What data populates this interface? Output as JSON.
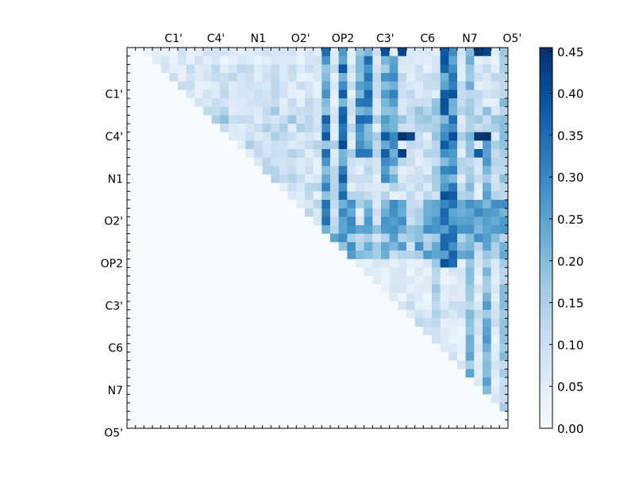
{
  "chart_data": {
    "type": "heatmap",
    "x_ticks": [
      "C1'",
      "C4'",
      "N1",
      "O2'",
      "OP2",
      "C3'",
      "C6",
      "N7",
      "O5'"
    ],
    "y_ticks": [
      "C1'",
      "C4'",
      "N1",
      "O2'",
      "OP2",
      "C3'",
      "C6",
      "N7",
      "O5'"
    ],
    "colorbar": {
      "colormap": "Blues",
      "min": 0.0,
      "max": 0.4545,
      "ticks": [
        0.0,
        0.05,
        0.1,
        0.15,
        0.2,
        0.25,
        0.3,
        0.35,
        0.4,
        0.45
      ],
      "tick_labels": [
        "0.00",
        "0.05",
        "0.10",
        "0.15",
        "0.20",
        "0.25",
        "0.30",
        "0.35",
        "0.40",
        "0.45"
      ]
    },
    "grid": false,
    "triangle": "upper",
    "matrix": {
      "size": 45,
      "background": 0.0,
      "default_upper_value": 0.03,
      "upper_bands": [
        {
          "rows": [
            0,
            1
          ],
          "value": 0.06
        },
        {
          "rows": [
            2,
            6
          ],
          "value": 0.08
        },
        {
          "rows": [
            7,
            8
          ],
          "value": 0.12
        },
        {
          "rows": [
            9,
            12
          ],
          "value": 0.1
        },
        {
          "rows": [
            13,
            17
          ],
          "value": 0.09
        },
        {
          "rows": [
            18,
            20
          ],
          "value": 0.1
        },
        {
          "rows": [
            21,
            24
          ],
          "value": 0.18
        },
        {
          "rows": [
            25,
            29
          ],
          "value": 0.05
        },
        {
          "rows": [
            30,
            32
          ],
          "value": 0.08
        },
        {
          "rows": [
            33,
            41
          ],
          "value": 0.06
        },
        {
          "rows": [
            42,
            44
          ],
          "value": 0.1
        }
      ],
      "hot_columns": [
        {
          "cols": [
            23
          ],
          "rows": [
            0,
            20
          ],
          "value": 0.3
        },
        {
          "cols": [
            25
          ],
          "rows": [
            0,
            17
          ],
          "value": 0.36
        },
        {
          "cols": [
            27,
            28
          ],
          "rows": [
            0,
            12
          ],
          "value": 0.32
        },
        {
          "cols": [
            30,
            31
          ],
          "rows": [
            1,
            15
          ],
          "value": 0.28
        },
        {
          "cols": [
            37,
            38
          ],
          "rows": [
            0,
            25
          ],
          "value": 0.35
        },
        {
          "cols": [
            40
          ],
          "rows": [
            0,
            44
          ],
          "value": 0.22
        },
        {
          "cols": [
            36
          ],
          "rows": [
            6,
            44
          ],
          "value": 0.16
        },
        {
          "cols": [
            42
          ],
          "rows": [
            10,
            44
          ],
          "value": 0.24
        },
        {
          "cols": [
            44
          ],
          "rows": [
            0,
            44
          ],
          "value": 0.18
        }
      ],
      "hot_cells": [
        {
          "row": 10,
          "col": 32,
          "value": 0.45
        },
        {
          "row": 10,
          "col": 33,
          "value": 0.42
        },
        {
          "row": 10,
          "col": 30,
          "value": 0.38
        },
        {
          "row": 12,
          "col": 32,
          "value": 0.43
        },
        {
          "row": 12,
          "col": 30,
          "value": 0.37
        },
        {
          "row": 0,
          "col": 30,
          "value": 0.4
        },
        {
          "row": 0,
          "col": 32,
          "value": 0.42
        },
        {
          "row": 0,
          "col": 41,
          "value": 0.44
        },
        {
          "row": 0,
          "col": 42,
          "value": 0.42
        },
        {
          "row": 10,
          "col": 41,
          "value": 0.44
        },
        {
          "row": 10,
          "col": 42,
          "value": 0.45
        },
        {
          "row": 12,
          "col": 41,
          "value": 0.38
        },
        {
          "row": 8,
          "col": 23,
          "value": 0.37
        },
        {
          "row": 10,
          "col": 23,
          "value": 0.38
        },
        {
          "row": 12,
          "col": 23,
          "value": 0.35
        },
        {
          "row": 0,
          "col": 23,
          "value": 0.35
        }
      ],
      "op2_block": {
        "rows": [
          18,
          21
        ],
        "cols": [
          22,
          44
        ],
        "value": 0.26
      },
      "op2_block_gaps": [
        22,
        24,
        27,
        29,
        33,
        34,
        37
      ]
    }
  }
}
